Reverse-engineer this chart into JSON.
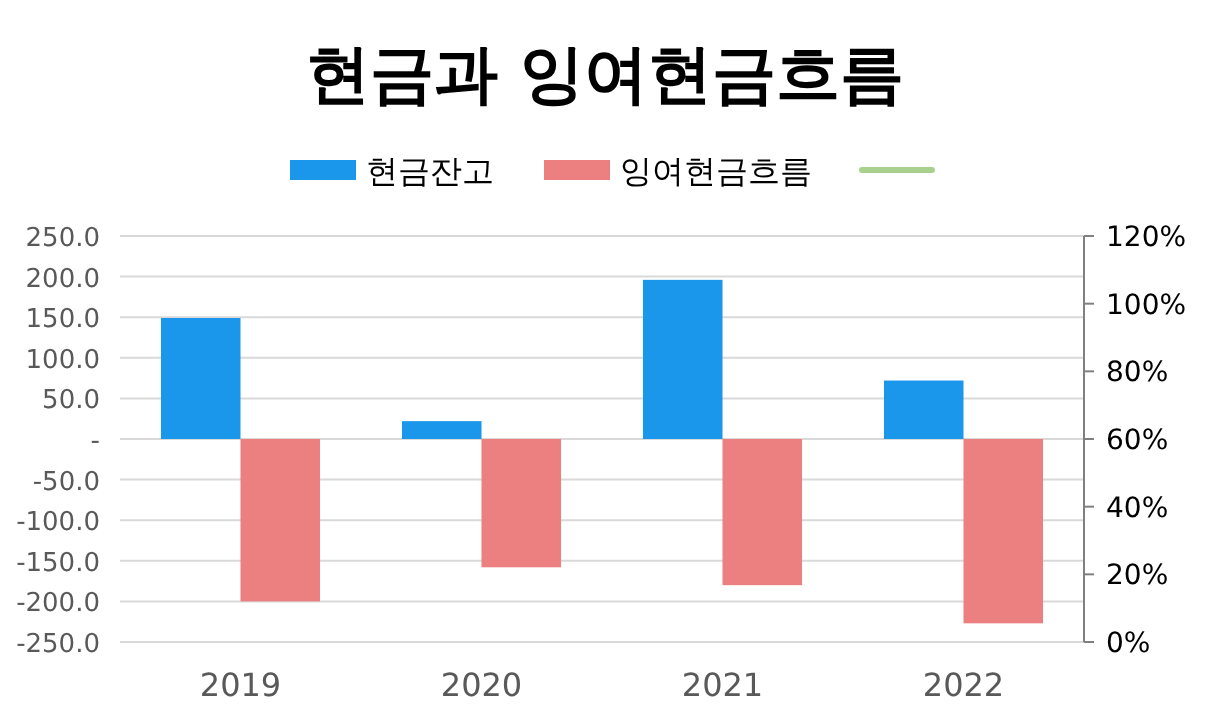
{
  "chart_data": {
    "type": "bar",
    "title": "현금과 잉여현금흐름",
    "categories": [
      "2019",
      "2020",
      "2021",
      "2022"
    ],
    "series": [
      {
        "name": "현금잔고",
        "color": "#1a96ea",
        "values": [
          149,
          22,
          196,
          72
        ]
      },
      {
        "name": "잉여현금흐름",
        "color": "#ec7f7f",
        "values": [
          -200,
          -158,
          -180,
          -227
        ]
      },
      {
        "type": "line",
        "axis": "y2",
        "color": "#a9d18e",
        "values": [
          null,
          null,
          null,
          null
        ]
      }
    ],
    "ylim": [
      -250,
      250
    ],
    "yticks": [
      {
        "value": 250,
        "label": "250.0"
      },
      {
        "value": 200,
        "label": "200.0"
      },
      {
        "value": 150,
        "label": "150.0"
      },
      {
        "value": 100,
        "label": "100.0"
      },
      {
        "value": 50,
        "label": "50.0"
      },
      {
        "value": 0,
        "label": "-"
      },
      {
        "value": -50,
        "label": "-50.0"
      },
      {
        "value": -100,
        "label": "-100.0"
      },
      {
        "value": -150,
        "label": "-150.0"
      },
      {
        "value": -200,
        "label": "-200.0"
      },
      {
        "value": -250,
        "label": "-250.0"
      }
    ],
    "y2lim": [
      0,
      120
    ],
    "y2ticks": [
      {
        "value": 0,
        "label": "0%"
      },
      {
        "value": 20,
        "label": "20%"
      },
      {
        "value": 40,
        "label": "40%"
      },
      {
        "value": 60,
        "label": "60%"
      },
      {
        "value": 80,
        "label": "80%"
      },
      {
        "value": 100,
        "label": "100%"
      },
      {
        "value": 120,
        "label": "120%"
      }
    ],
    "grid": "y",
    "legend": "top"
  }
}
